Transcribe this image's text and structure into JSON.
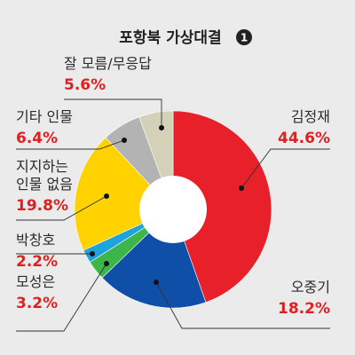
{
  "title": "포항북 가상대결",
  "title_badge": "1",
  "chart_data": {
    "type": "pie",
    "title": "포항북 가상대결",
    "donut": true,
    "start_angle_deg": 0,
    "direction": "clockwise",
    "slices": [
      {
        "label": "김정재",
        "value": 44.6,
        "display_value": "44.6%",
        "color": "#e8202a"
      },
      {
        "label": "오중기",
        "value": 18.2,
        "display_value": "18.2%",
        "color": "#0f4fa8"
      },
      {
        "label": "모성은",
        "value": 3.2,
        "display_value": "3.2%",
        "color": "#3cb54a"
      },
      {
        "label": "박창호",
        "value": 2.2,
        "display_value": "2.2%",
        "color": "#1fa3dc"
      },
      {
        "label": "지지하는\n인물 없음",
        "value": 19.8,
        "display_value": "19.8%",
        "color": "#ffd200"
      },
      {
        "label": "기타 인물",
        "value": 6.4,
        "display_value": "6.4%",
        "color": "#b3b3b3"
      },
      {
        "label": "잘 모름/무응답",
        "value": 5.6,
        "display_value": "5.6%",
        "color": "#d5d1b8"
      }
    ]
  }
}
